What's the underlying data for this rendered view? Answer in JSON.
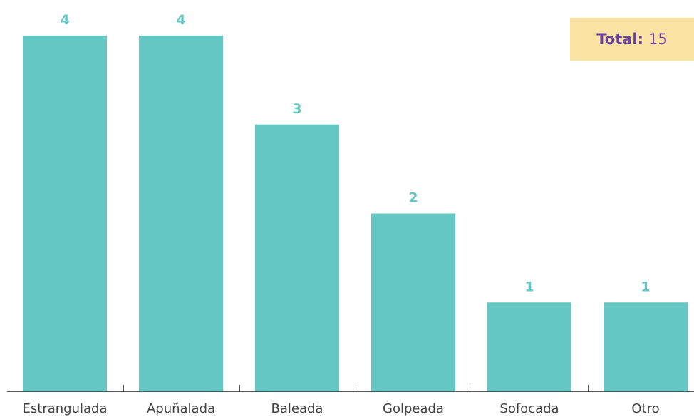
{
  "chart_data": {
    "type": "bar",
    "categories": [
      "Estrangulada",
      "Apuñalada",
      "Baleada",
      "Golpeada",
      "Sofocada",
      "Otro"
    ],
    "values": [
      4,
      4,
      3,
      2,
      1,
      1
    ],
    "title": "",
    "xlabel": "",
    "ylabel": "",
    "ylim": [
      0,
      4
    ],
    "grid": false,
    "legend": "none"
  },
  "total_box": {
    "label": "Total:",
    "value": "15"
  },
  "colors": {
    "bar": "#64c7c3",
    "value_label": "#64c7c3",
    "total_label": "#6b3fa0",
    "total_value": "#6b3fa0",
    "total_bg": "#fbe3a3",
    "axis": "#555555"
  }
}
